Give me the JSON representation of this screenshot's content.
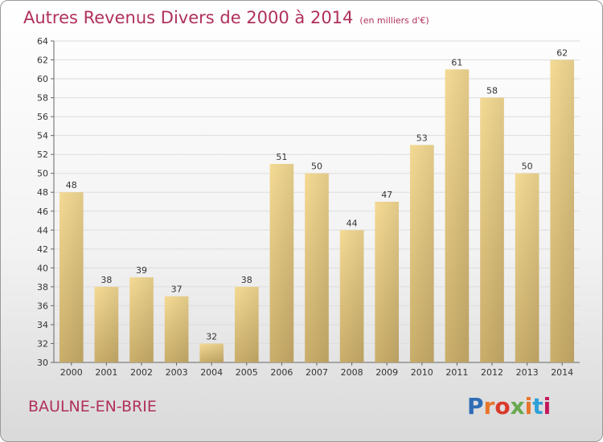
{
  "header": {
    "title": "Autres Revenus Divers de 2000 à 2014",
    "unit": "(en milliers d'€)"
  },
  "footer": {
    "commune": "BAULNE-EN-BRIE",
    "logo_text": "Proxiti",
    "logo_colors": [
      "#2f6db5",
      "#e8742a",
      "#d93a2b",
      "#6aa84f",
      "#e8742a",
      "#2f9fd8",
      "#c2185b"
    ]
  },
  "chart_data": {
    "type": "bar",
    "title": "Autres Revenus Divers de 2000 à 2014",
    "subtitle": "(en milliers d'€)",
    "xlabel": "",
    "ylabel": "",
    "categories": [
      "2000",
      "2001",
      "2002",
      "2003",
      "2004",
      "2005",
      "2006",
      "2007",
      "2008",
      "2009",
      "2010",
      "2011",
      "2012",
      "2013",
      "2014"
    ],
    "values": [
      48,
      38,
      39,
      37,
      32,
      38,
      51,
      50,
      44,
      47,
      53,
      61,
      58,
      50,
      62
    ],
    "ylim": [
      30,
      64
    ],
    "yticks": [
      30,
      32,
      34,
      36,
      38,
      40,
      42,
      44,
      46,
      48,
      50,
      52,
      54,
      56,
      58,
      60,
      62,
      64
    ],
    "grid": true,
    "legend": "none",
    "bar_color": "#e8c97a"
  }
}
